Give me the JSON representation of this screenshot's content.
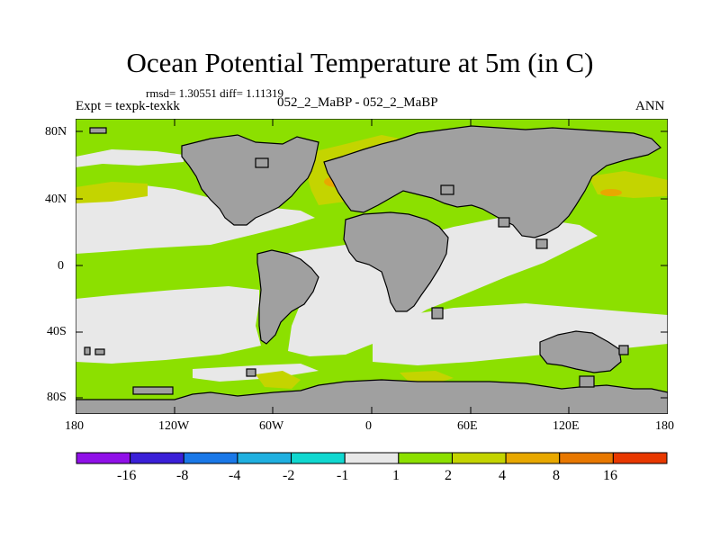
{
  "title": "Ocean Potential Temperature at 5m (in C)",
  "stats": "rmsd= 1.30551  diff= 1.11319",
  "expt_label": "Expt = texpk-texkk",
  "case_label": "052_2_MaBP - 052_2_MaBP",
  "period_label": "ANN",
  "axes": {
    "x_ticks": [
      "180",
      "120W",
      "60W",
      "0",
      "60E",
      "120E",
      "180"
    ],
    "y_ticks": [
      "80N",
      "40N",
      "0",
      "40S",
      "80S"
    ]
  },
  "colorbar": {
    "colors": [
      "#9010e8",
      "#3a20d8",
      "#1a78e8",
      "#20b0e0",
      "#10d8d0",
      "#e8e8e8",
      "#8ce000",
      "#c4d400",
      "#e8a800",
      "#e87800",
      "#e83800"
    ],
    "labels": [
      "-16",
      "-8",
      "-4",
      "-2",
      "-1",
      "1",
      "2",
      "4",
      "8",
      "16"
    ]
  },
  "map_colors": {
    "land": "#a0a0a0",
    "ocean_1_2": "#8ce000",
    "ocean_near_zero": "#e8e8e8",
    "ocean_2_4": "#c4d400"
  }
}
